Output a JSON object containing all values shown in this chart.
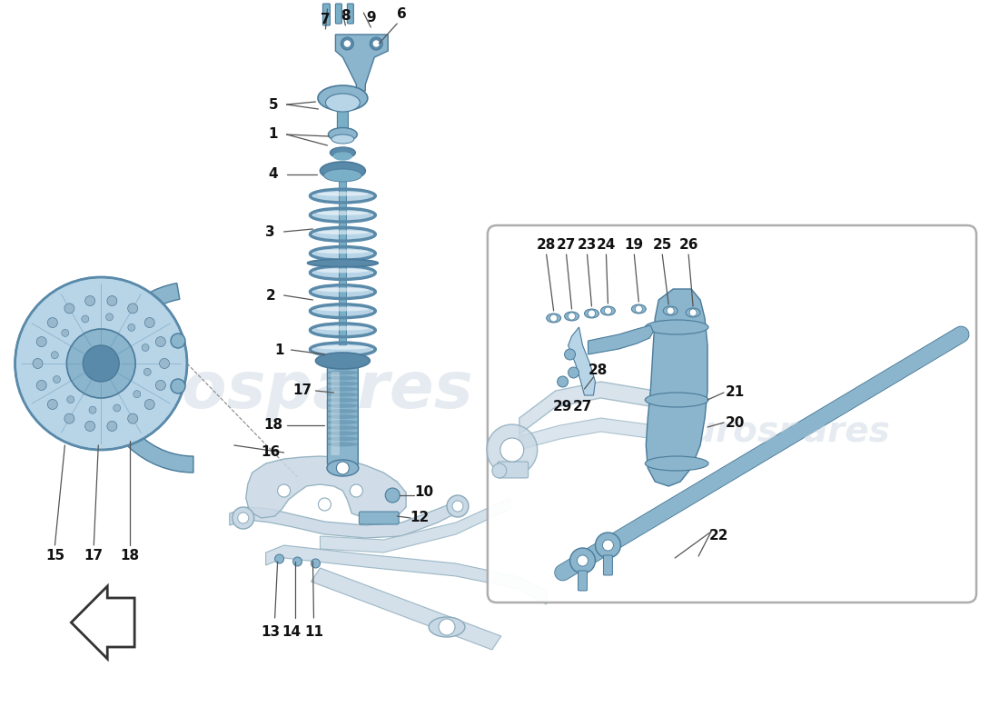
{
  "bg_color": "#ffffff",
  "part_color": "#8ab5cc",
  "part_color_light": "#b8d5e8",
  "part_color_dark": "#5a8aaa",
  "part_color_mid": "#7aafc8",
  "outline_color": "#4a7a9a",
  "line_color": "#666666",
  "label_color": "#111111",
  "watermark_color": "#d5dfe8",
  "watermark_alpha": 0.6,
  "arm_color": "#c8d8e4",
  "arm_outline": "#8aaabb"
}
